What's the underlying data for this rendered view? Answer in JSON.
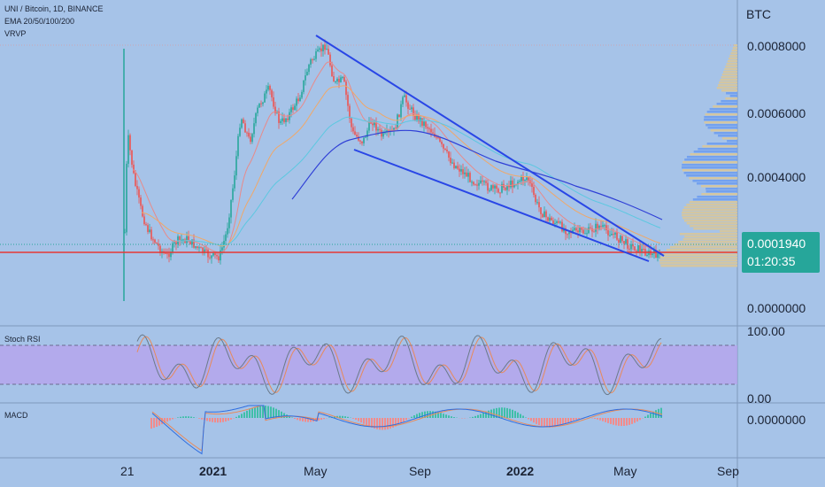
{
  "header": {
    "symbol_line": "UNI / Bitcoin, 1D, BINANCE",
    "ema_line": "EMA 20/50/100/200",
    "vrvp_line": "VRVP"
  },
  "price_scale": {
    "unit": "BTC",
    "ticks": [
      "0.0008000",
      "0.0006000",
      "0.0004000",
      "0.0000000"
    ],
    "current_price": "0.0001940",
    "countdown": "01:20:35"
  },
  "time_axis": {
    "labels": [
      {
        "text": "21",
        "bold": false
      },
      {
        "text": "2021",
        "bold": true
      },
      {
        "text": "May",
        "bold": false
      },
      {
        "text": "Sep",
        "bold": false
      },
      {
        "text": "2022",
        "bold": true
      },
      {
        "text": "May",
        "bold": false
      },
      {
        "text": "Sep",
        "bold": false
      }
    ]
  },
  "stoch_rsi": {
    "title": "Stoch RSI",
    "ticks": [
      "100.00",
      "0.00"
    ]
  },
  "macd": {
    "title": "MACD",
    "ticks": [
      "0.0000000"
    ]
  },
  "colors": {
    "background": "#a6c3e8",
    "up": "#26a69a",
    "down": "#ef5350",
    "trendline": "#2946e6",
    "support_line": "#e53935",
    "ema20": "#e88a8a",
    "ema50": "#f0a868",
    "ema100": "#5cc8e0",
    "ema200": "#2f3fd6",
    "stoch_band": "#b7a2ee",
    "price_badge": "#26a69a"
  }
}
